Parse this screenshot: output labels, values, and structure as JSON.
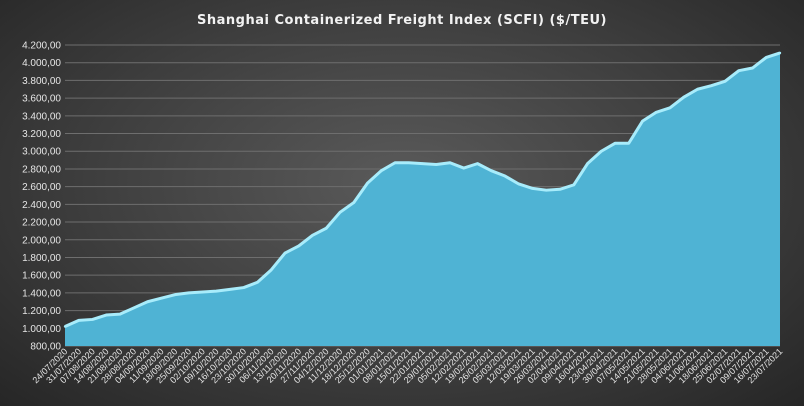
{
  "chart_data": {
    "type": "area",
    "title": "Shanghai Containerized Freight Index  (SCFI) ($/TEU)",
    "xlabel": "",
    "ylabel": "",
    "ylim": [
      800,
      4200
    ],
    "yticks": [
      800,
      1000,
      1200,
      1400,
      1600,
      1800,
      2000,
      2200,
      2400,
      2600,
      2800,
      3000,
      3200,
      3400,
      3600,
      3800,
      4000,
      4200
    ],
    "ytick_labels": [
      "800,00",
      "1.000,00",
      "1.200,00",
      "1.400,00",
      "1.600,00",
      "1.800,00",
      "2.000,00",
      "2.200,00",
      "2.400,00",
      "2.600,00",
      "2.800,00",
      "3.000,00",
      "3.200,00",
      "3.400,00",
      "3.600,00",
      "3.800,00",
      "4.000,00",
      "4.200,00"
    ],
    "grid": true,
    "colors": {
      "fill": "#4fb3d4",
      "line": "#a8ecfb",
      "grid": "#6e6e6e",
      "text": "#e6e6e6"
    },
    "x": [
      "24/07/2020",
      "31/07/2020",
      "07/08/2020",
      "14/08/2020",
      "21/08/2020",
      "28/08/2020",
      "04/09/2020",
      "11/09/2020",
      "18/09/2020",
      "25/09/2020",
      "02/10/2020",
      "09/10/2020",
      "16/10/2020",
      "23/10/2020",
      "30/10/2020",
      "06/11/2020",
      "13/11/2020",
      "20/11/2020",
      "27/11/2020",
      "04/12/2020",
      "11/12/2020",
      "18/12/2020",
      "25/12/2020",
      "01/01/2021",
      "08/01/2021",
      "15/01/2021",
      "22/01/2021",
      "29/01/2021",
      "05/02/2021",
      "12/02/2021",
      "19/02/2021",
      "26/02/2021",
      "05/03/2021",
      "12/03/2021",
      "19/03/2021",
      "26/03/2021",
      "02/04/2021",
      "09/04/2021",
      "16/04/2021",
      "23/04/2021",
      "30/04/2021",
      "07/05/2021",
      "14/05/2021",
      "21/05/2021",
      "28/05/2021",
      "04/06/2021",
      "11/06/2021",
      "18/06/2021",
      "25/06/2021",
      "02/07/2021",
      "09/07/2021",
      "16/07/2021",
      "23/07/2021"
    ],
    "values": [
      1020,
      1090,
      1100,
      1150,
      1160,
      1230,
      1300,
      1340,
      1380,
      1400,
      1410,
      1420,
      1440,
      1460,
      1520,
      1660,
      1850,
      1930,
      2050,
      2130,
      2310,
      2420,
      2640,
      2780,
      2870,
      2870,
      2860,
      2850,
      2870,
      2810,
      2860,
      2780,
      2720,
      2630,
      2580,
      2560,
      2570,
      2620,
      2860,
      3000,
      3090,
      3090,
      3340,
      3440,
      3490,
      3610,
      3700,
      3740,
      3790,
      3910,
      3940,
      4060,
      4110
    ]
  }
}
